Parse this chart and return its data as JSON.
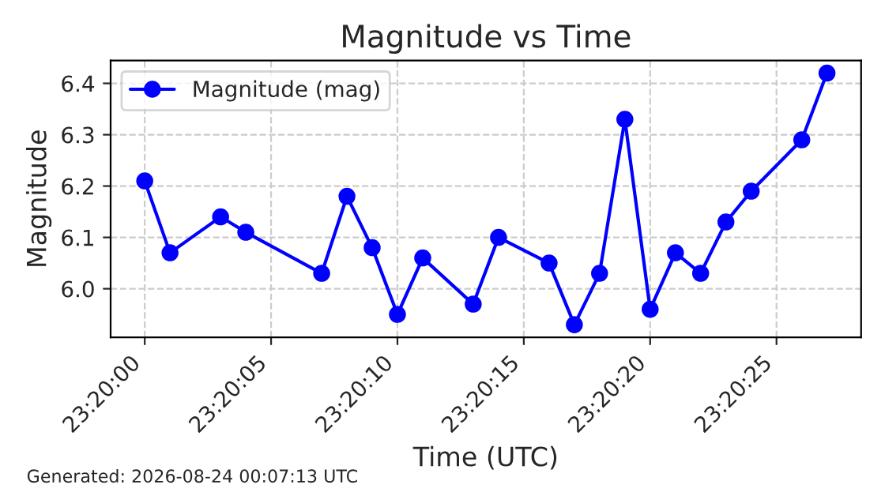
{
  "chart_data": {
    "type": "line",
    "title": "Magnitude vs Time",
    "xlabel": "Time (UTC)",
    "ylabel": "Magnitude",
    "annotations": [
      "Generated: 2026-08-24 00:07:13 UTC"
    ],
    "x": [
      23.333333,
      23.333611,
      23.334167,
      23.334444,
      23.335278,
      23.335556,
      23.335833,
      23.336111,
      23.336389,
      23.336944,
      23.337222,
      23.337778,
      23.338056,
      23.338333,
      23.338611,
      23.338889,
      23.339167,
      23.339444,
      23.339722,
      23.34,
      23.340556,
      23.340833
    ],
    "series": [
      {
        "name": "Magnitude (mag)",
        "color": "#0000ff",
        "values": [
          6.21,
          6.07,
          6.14,
          6.11,
          6.03,
          6.18,
          6.08,
          5.95,
          6.06,
          5.97,
          6.1,
          6.05,
          5.93,
          6.03,
          6.33,
          5.96,
          6.07,
          6.03,
          6.13,
          6.19,
          6.29,
          6.42
        ]
      }
    ],
    "xlim": [
      23.332958,
      23.341208
    ],
    "xticks": [
      {
        "value": 23.333333,
        "label": "23:20:00"
      },
      {
        "value": 23.334722,
        "label": "23:20:05"
      },
      {
        "value": 23.336111,
        "label": "23:20:10"
      },
      {
        "value": 23.3375,
        "label": "23:20:15"
      },
      {
        "value": 23.338889,
        "label": "23:20:20"
      },
      {
        "value": 23.340278,
        "label": "23:20:25"
      }
    ],
    "ylim": [
      5.9055,
      6.4445
    ],
    "yticks": [
      {
        "value": 6.0,
        "label": "6.0"
      },
      {
        "value": 6.1,
        "label": "6.1"
      },
      {
        "value": 6.2,
        "label": "6.2"
      },
      {
        "value": 6.3,
        "label": "6.3"
      },
      {
        "value": 6.4,
        "label": "6.4"
      }
    ],
    "grid": true,
    "legend": "top left",
    "marker": "circle",
    "line_style": "solid"
  }
}
